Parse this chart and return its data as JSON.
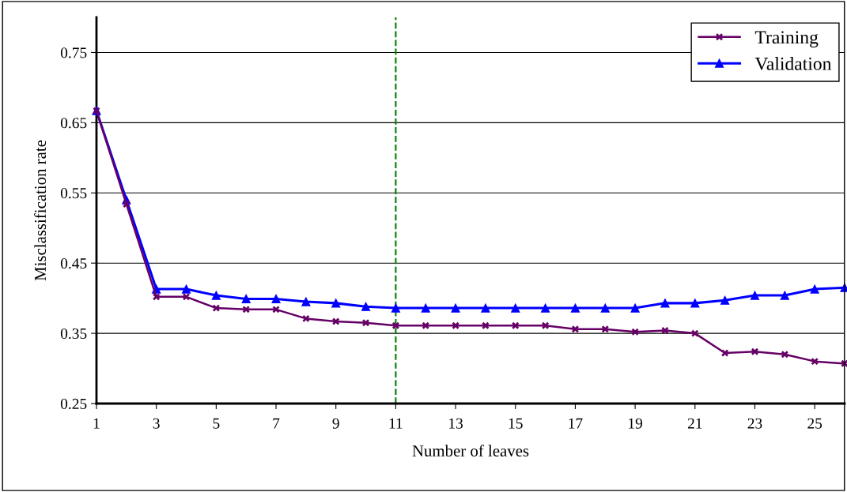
{
  "chart_data": {
    "type": "line",
    "xlabel": "Number of leaves",
    "ylabel": "Misclassification rate",
    "x": [
      1,
      2,
      3,
      4,
      5,
      6,
      7,
      8,
      9,
      10,
      11,
      12,
      13,
      14,
      15,
      16,
      17,
      18,
      19,
      20,
      21,
      22,
      23,
      24,
      25,
      26
    ],
    "series": [
      {
        "name": "Training",
        "color": "#660066",
        "marker": "cross",
        "values": [
          0.667,
          0.534,
          0.402,
          0.402,
          0.386,
          0.384,
          0.384,
          0.371,
          0.367,
          0.365,
          0.361,
          0.361,
          0.361,
          0.361,
          0.361,
          0.361,
          0.356,
          0.356,
          0.352,
          0.354,
          0.35,
          0.322,
          0.324,
          0.32,
          0.31,
          0.307
        ]
      },
      {
        "name": "Validation",
        "color": "#0000ff",
        "marker": "triangle",
        "values": [
          0.667,
          0.54,
          0.413,
          0.413,
          0.404,
          0.399,
          0.399,
          0.395,
          0.393,
          0.388,
          0.386,
          0.386,
          0.386,
          0.386,
          0.386,
          0.386,
          0.386,
          0.386,
          0.386,
          0.393,
          0.393,
          0.397,
          0.404,
          0.404,
          0.413,
          0.415
        ]
      }
    ],
    "xlim": [
      1,
      26
    ],
    "xticks": [
      1,
      3,
      5,
      7,
      9,
      11,
      13,
      15,
      17,
      19,
      21,
      23,
      25
    ],
    "ylim": [
      0.25,
      0.8
    ],
    "yticks": [
      0.25,
      0.35,
      0.45,
      0.55,
      0.65,
      0.75
    ],
    "grid": "y",
    "legend": "top right",
    "line_style": "solid",
    "ref_lines": [
      {
        "axis": "x",
        "value": 11,
        "color": "#008000",
        "line_style": "dashed"
      }
    ]
  }
}
